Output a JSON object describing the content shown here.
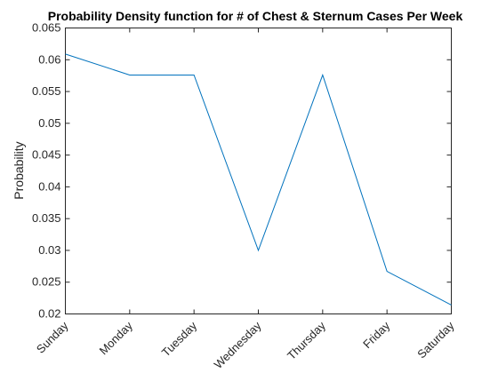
{
  "chart_data": {
    "type": "line",
    "title": "Probability Density function for # of Chest & Sternum Cases Per Week",
    "xlabel": "",
    "ylabel": "Probability",
    "categories": [
      "Sunday",
      "Monday",
      "Tuesday",
      "Wednesday",
      "Thursday",
      "Friday",
      "Saturday"
    ],
    "series": [
      {
        "values": [
          0.0609,
          0.0576,
          0.0576,
          0.03,
          0.0576,
          0.0267,
          0.0214
        ]
      }
    ],
    "ylim": [
      0.02,
      0.065
    ],
    "yticks": [
      "0.02",
      "0.025",
      "0.03",
      "0.035",
      "0.04",
      "0.045",
      "0.05",
      "0.055",
      "0.06",
      "0.065"
    ],
    "grid": false,
    "legend": "none",
    "colors": {
      "series": "#0072bd",
      "axes": "#262626"
    }
  }
}
